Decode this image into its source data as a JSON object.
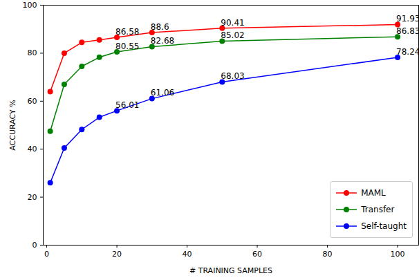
{
  "chart_data": {
    "type": "line",
    "x_label": "# TRAINING SAMPLES",
    "y_label": "ACCURACY %",
    "x": [
      1,
      5,
      10,
      15,
      20,
      30,
      50,
      100
    ],
    "series": [
      {
        "name": "MAML",
        "color": "#ff0000",
        "values": [
          64,
          80,
          84.5,
          85.5,
          86.58,
          88.6,
          90.41,
          91.93
        ],
        "value_labels": [
          null,
          null,
          null,
          null,
          "86.58",
          "88.6",
          "90.41",
          "91.93"
        ]
      },
      {
        "name": "Transfer",
        "color": "#008000",
        "values": [
          47.5,
          67,
          74.5,
          78.3,
          80.55,
          82.68,
          85.02,
          86.83
        ],
        "value_labels": [
          null,
          null,
          null,
          null,
          "80.55",
          "82.68",
          "85.02",
          "86.83"
        ]
      },
      {
        "name": "Self-taught",
        "color": "#0000ff",
        "values": [
          26,
          40.5,
          48.2,
          53.3,
          56.01,
          61.06,
          68.03,
          78.24
        ],
        "value_labels": [
          null,
          null,
          null,
          null,
          "56.01",
          "61.06",
          "68.03",
          "78.24"
        ]
      }
    ],
    "xlim": [
      -1,
      106
    ],
    "xticks": [
      0,
      20,
      40,
      60,
      80,
      100
    ],
    "ylim": [
      0,
      100
    ],
    "yticks": [
      0,
      20,
      40,
      60,
      80,
      100
    ],
    "grid": false,
    "legend": "lower right",
    "marker": "o",
    "data_labels": true
  }
}
